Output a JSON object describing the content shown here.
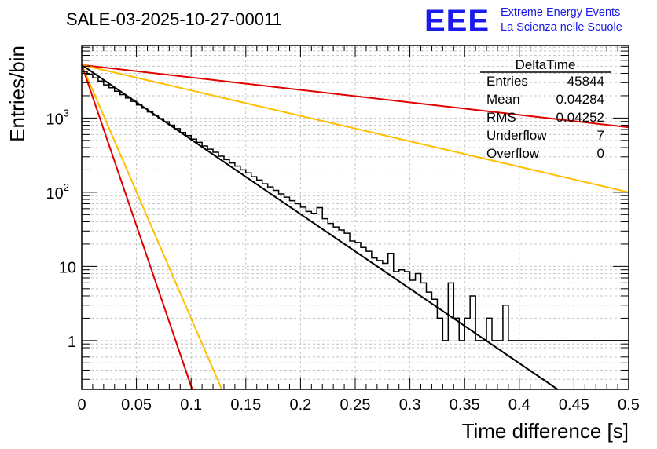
{
  "chart_data": {
    "type": "histogram",
    "title": "SALE-03-2025-10-27-00011",
    "xlabel": "Time difference [s]",
    "ylabel": "Entries/bin",
    "xlim": [
      0,
      0.5
    ],
    "ylim_log": [
      0.22,
      9500
    ],
    "yscale": "log",
    "grid": true,
    "x_ticks": [
      {
        "value": 0,
        "label": "0"
      },
      {
        "value": 0.05,
        "label": "0.05"
      },
      {
        "value": 0.1,
        "label": "0.1"
      },
      {
        "value": 0.15,
        "label": "0.15"
      },
      {
        "value": 0.2,
        "label": "0.2"
      },
      {
        "value": 0.25,
        "label": "0.25"
      },
      {
        "value": 0.3,
        "label": "0.3"
      },
      {
        "value": 0.35,
        "label": "0.35"
      },
      {
        "value": 0.4,
        "label": "0.4"
      },
      {
        "value": 0.45,
        "label": "0.45"
      },
      {
        "value": 0.5,
        "label": "0.5"
      }
    ],
    "y_ticks": [
      {
        "value": 1,
        "label": "1"
      },
      {
        "value": 10,
        "label": "10"
      },
      {
        "value": 100,
        "label": "10",
        "exponent": "2"
      },
      {
        "value": 1000,
        "label": "10",
        "exponent": "3"
      }
    ],
    "bin_width": 0.005,
    "histogram_counts": [
      4250,
      3900,
      3480,
      3150,
      2800,
      2560,
      2300,
      2070,
      1860,
      1680,
      1500,
      1360,
      1210,
      1090,
      980,
      890,
      800,
      720,
      640,
      580,
      520,
      470,
      420,
      380,
      345,
      306,
      275,
      248,
      225,
      200,
      182,
      162,
      146,
      130,
      118,
      106,
      95,
      86,
      77,
      70,
      63,
      55,
      52,
      62,
      44,
      38,
      34,
      31,
      28,
      22,
      21,
      18,
      16,
      13,
      12,
      11,
      15,
      8.5,
      9,
      8.5,
      6.5,
      8,
      6,
      4.5,
      3.6,
      2,
      1,
      6,
      2,
      1,
      2,
      4,
      1,
      1,
      2,
      1,
      1,
      3,
      1,
      1,
      1,
      1,
      1,
      1,
      1,
      1,
      1,
      1,
      1,
      1,
      1,
      1,
      1,
      1,
      1,
      1,
      1,
      1,
      1,
      1
    ],
    "fit_lines": [
      {
        "name": "fit",
        "color": "#000000",
        "points": [
          [
            0,
            5200
          ],
          [
            0.435,
            0.22
          ]
        ]
      },
      {
        "name": "red-slow",
        "color": "#e00000",
        "points": [
          [
            0,
            5200
          ],
          [
            0.5,
            750
          ]
        ]
      },
      {
        "name": "yellow-slow",
        "color": "#ffbf00",
        "points": [
          [
            0,
            5200
          ],
          [
            0.5,
            100
          ]
        ]
      },
      {
        "name": "yellow-fast",
        "color": "#ffbf00",
        "points": [
          [
            0,
            5200
          ],
          [
            0.128,
            0.22
          ]
        ]
      },
      {
        "name": "red-fast",
        "color": "#e00000",
        "points": [
          [
            0,
            5200
          ],
          [
            0.101,
            0.22
          ]
        ]
      }
    ],
    "stats_box": {
      "title": "DeltaTime",
      "rows": [
        {
          "label": "Entries",
          "value": "45844"
        },
        {
          "label": "Mean",
          "value": "0.04284"
        },
        {
          "label": "RMS",
          "value": "0.04252"
        },
        {
          "label": "Underflow",
          "value": "7"
        },
        {
          "label": "Overflow",
          "value": "0"
        }
      ]
    }
  },
  "logo": {
    "mark": "EEE",
    "line1": "Extreme Energy Events",
    "line2": "La Scienza nelle Scuole",
    "color": "#1a1aee"
  }
}
